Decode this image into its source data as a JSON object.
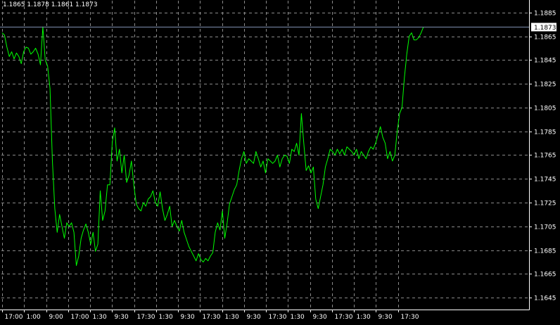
{
  "ohlc_header": "1.1865 1.1878 1.1861 1.1873",
  "colors": {
    "background": "#000000",
    "grid": "#8a8a8a",
    "price_line": "#00ff00",
    "current_price_line": "#7f8fb0",
    "axis_text": "#ffffff"
  },
  "chart_data": {
    "type": "line",
    "grid": true,
    "ylim": [
      1.1635,
      1.1895
    ],
    "y_ticks": [
      "1.1885",
      "1.1865",
      "1.1845",
      "1.1825",
      "1.1805",
      "1.1785",
      "1.1765",
      "1.1745",
      "1.1725",
      "1.1705",
      "1.1685",
      "1.1665",
      "1.1645"
    ],
    "x_ticks": [
      "17:00",
      "1:00",
      "9:00",
      "17:00",
      "1:30",
      "9:30",
      "17:30",
      "1:30",
      "9:30",
      "17:30",
      "1:30",
      "9:30",
      "17:30",
      "1:30",
      "9:30",
      "17:30",
      "1:30",
      "9:30",
      "17:30"
    ],
    "current_price": "1.1873",
    "series": [
      {
        "values": [
          1.1868,
          1.1866,
          1.1856,
          1.1848,
          1.1852,
          1.1846,
          1.1851,
          1.1848,
          1.1842,
          1.1852,
          1.1856,
          1.1855,
          1.185,
          1.1852,
          1.1855,
          1.185,
          1.1841,
          1.1873,
          1.1845,
          1.184,
          1.1821,
          1.176,
          1.172,
          1.17,
          1.1715,
          1.1705,
          1.1695,
          1.1708,
          1.1705,
          1.1708,
          1.17,
          1.1672,
          1.168,
          1.1695,
          1.1702,
          1.1707,
          1.17,
          1.169,
          1.17,
          1.1684,
          1.169,
          1.1735,
          1.171,
          1.1718,
          1.174,
          1.174,
          1.1776,
          1.1788,
          1.176,
          1.177,
          1.175,
          1.1765,
          1.1742,
          1.1748,
          1.176,
          1.174,
          1.1724,
          1.172,
          1.1718,
          1.1725,
          1.1722,
          1.1728,
          1.173,
          1.1735,
          1.1725,
          1.1722,
          1.1734,
          1.172,
          1.171,
          1.1715,
          1.1722,
          1.1705,
          1.171,
          1.1705,
          1.1701,
          1.171,
          1.17,
          1.1694,
          1.1688,
          1.1684,
          1.168,
          1.1676,
          1.1682,
          1.1677,
          1.1675,
          1.1678,
          1.1676,
          1.168,
          1.1683,
          1.17,
          1.1708,
          1.1702,
          1.1718,
          1.1695,
          1.1708,
          1.1724,
          1.173,
          1.1736,
          1.174,
          1.1752,
          1.1762,
          1.1768,
          1.1758,
          1.1762,
          1.176,
          1.1758,
          1.1768,
          1.1762,
          1.1755,
          1.176,
          1.175,
          1.1762,
          1.176,
          1.1758,
          1.176,
          1.1765,
          1.1755,
          1.1762,
          1.1765,
          1.1764,
          1.1758,
          1.177,
          1.1768,
          1.1775,
          1.1765,
          1.18,
          1.1775,
          1.1752,
          1.1756,
          1.175,
          1.1755,
          1.1728,
          1.172,
          1.173,
          1.174,
          1.1755,
          1.1762,
          1.177,
          1.1768,
          1.1765,
          1.177,
          1.1766,
          1.177,
          1.1765,
          1.1772,
          1.177,
          1.1768,
          1.1765,
          1.177,
          1.1762,
          1.1768,
          1.1765,
          1.1762,
          1.1768,
          1.1772,
          1.177,
          1.1775,
          1.1782,
          1.1789,
          1.178,
          1.1775,
          1.1762,
          1.1768,
          1.176,
          1.1765,
          1.1785,
          1.18,
          1.1805,
          1.183,
          1.185,
          1.1865,
          1.1868,
          1.1862,
          1.1862,
          1.1864,
          1.1868,
          1.1873
        ]
      }
    ]
  }
}
